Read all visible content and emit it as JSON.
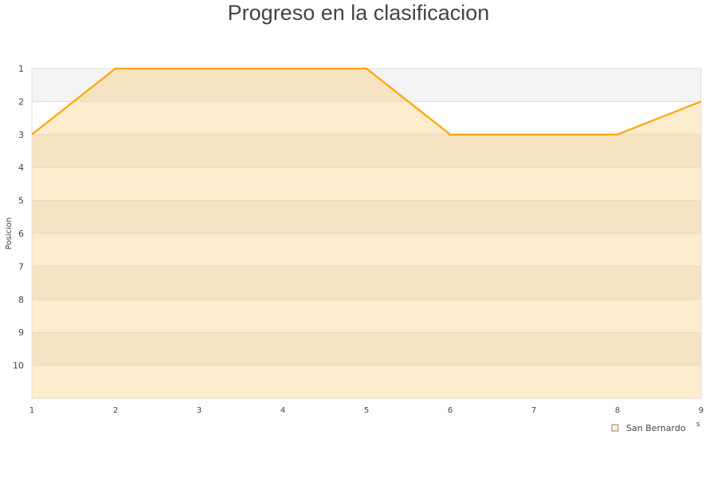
{
  "chart_data": {
    "type": "area",
    "title": "Progreso en la clasificacion",
    "ylabel": "Posicion",
    "xlabel_fragment": "s",
    "x": [
      1,
      2,
      3,
      4,
      5,
      6,
      7,
      8,
      9
    ],
    "series": [
      {
        "name": "San Bernardo",
        "values": [
          3,
          1,
          1,
          1,
          1,
          3,
          3,
          3,
          2
        ]
      }
    ],
    "xlim": [
      1,
      9
    ],
    "ylim": [
      11,
      1
    ],
    "y_inverted": true,
    "yticks": [
      1,
      2,
      3,
      4,
      5,
      6,
      7,
      8,
      9,
      10
    ],
    "xticks": [
      1,
      2,
      3,
      4,
      5,
      6,
      7,
      8,
      9
    ],
    "grid": true,
    "legend": "bottom-right",
    "colors": {
      "line": "#ffa500",
      "fill_dark": "#f6e3c2",
      "fill_light": "#feedcc",
      "band_gray": "#f4f4f4",
      "band_white": "#ffffff"
    }
  }
}
